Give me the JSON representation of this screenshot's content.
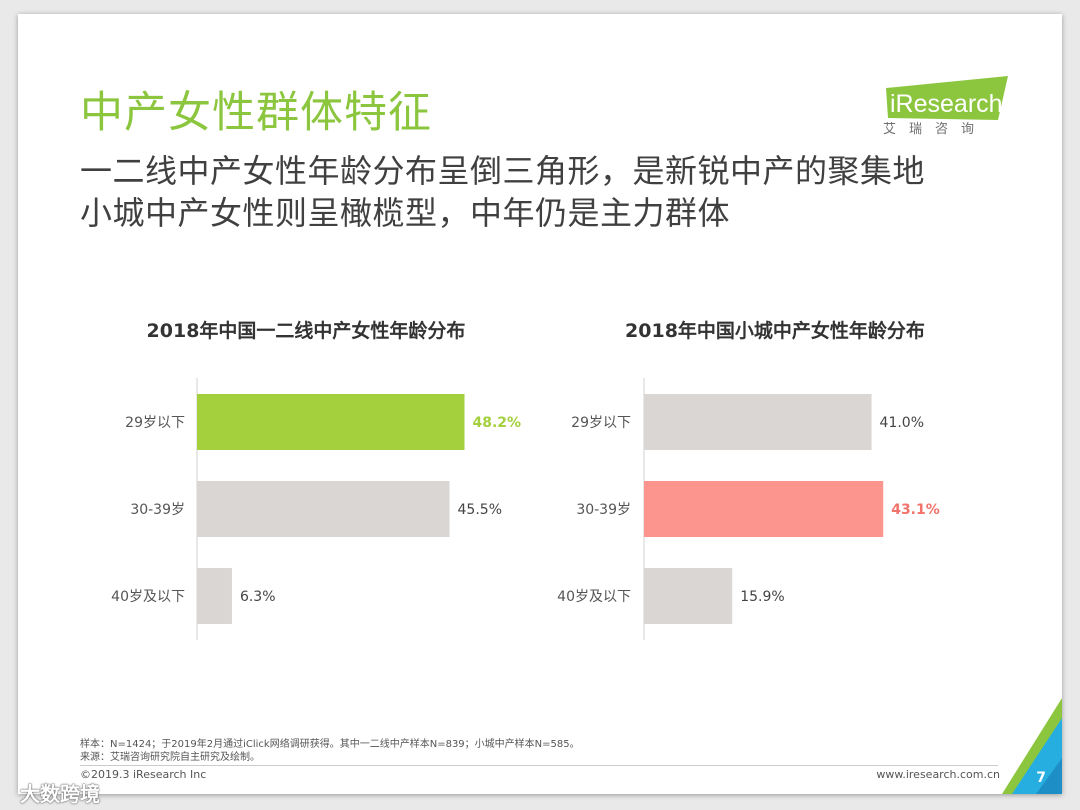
{
  "slide": {
    "title": "中产女性群体特征",
    "subtitle_line1": "一二线中产女性年龄分布呈倒三角形，是新锐中产的聚集地",
    "subtitle_line2": "小城中产女性则呈橄榄型，中年仍是主力群体"
  },
  "logo": {
    "text": "iResearch",
    "cn": "艾瑞咨询",
    "color": "#8cc63f"
  },
  "colors": {
    "green": "#a3d03c",
    "gray": "#d9d6d3",
    "salmon": "#fb958e",
    "label_green": "#a3d03c",
    "label_salmon": "#f2736b",
    "label_default": "#444444"
  },
  "chart_data": [
    {
      "type": "bar",
      "orientation": "horizontal",
      "title": "2018年中国一二线中产女性年龄分布",
      "categories": [
        "29岁以下",
        "30-39岁",
        "40岁及以下"
      ],
      "values": [
        48.2,
        45.5,
        6.3
      ],
      "labels": [
        "48.2%",
        "45.5%",
        "6.3%"
      ],
      "highlight_index": 0,
      "highlight_color": "#a3d03c",
      "bar_color": "#d9d6d3",
      "xlim": [
        0,
        50
      ]
    },
    {
      "type": "bar",
      "orientation": "horizontal",
      "title": "2018年中国小城中产女性年龄分布",
      "categories": [
        "29岁以下",
        "30-39岁",
        "40岁及以下"
      ],
      "values": [
        41.0,
        43.1,
        15.9
      ],
      "labels": [
        "41.0%",
        "43.1%",
        "15.9%"
      ],
      "highlight_index": 1,
      "highlight_color": "#fb958e",
      "bar_color": "#d9d6d3",
      "xlim": [
        0,
        50
      ]
    }
  ],
  "footer": {
    "note1": "样本：N=1424；于2019年2月通过iClick网络调研获得。其中一二线中产样本N=839；小城中产样本N=585。",
    "note2": "来源：艾瑞咨询研究院自主研究及绘制。",
    "copyright": "©2019.3 iResearch Inc",
    "website": "www.iresearch.com.cn",
    "page": "7"
  },
  "watermark": "大数跨境"
}
